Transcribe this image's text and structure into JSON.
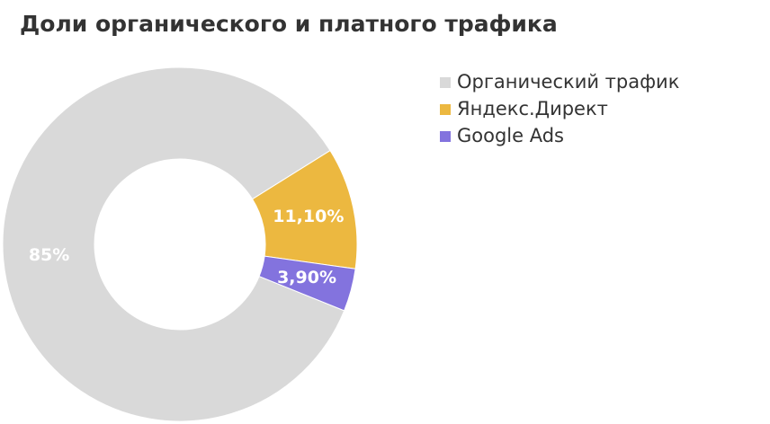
{
  "chart_data": {
    "type": "donut",
    "title": "Доли органического и платного трафика",
    "categories": [
      "Органический трафик",
      "Яндекс.Директ",
      "Google Ads"
    ],
    "values": [
      85,
      11.1,
      3.9
    ],
    "value_labels": [
      "85%",
      "11,10%",
      "3,90%"
    ],
    "colors": [
      "#d9d9d9",
      "#ecb840",
      "#8373de"
    ],
    "legend": "top-right"
  }
}
